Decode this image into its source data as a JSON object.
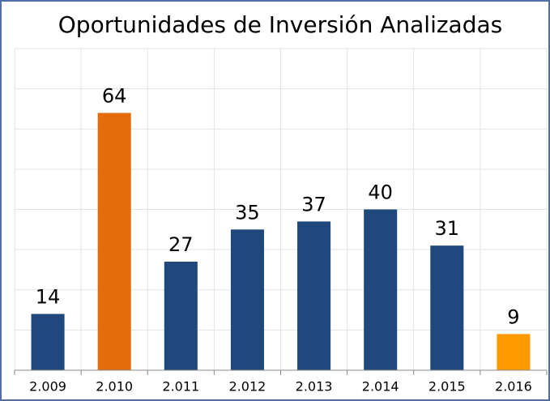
{
  "chart_data": {
    "type": "bar",
    "title": "Oportunidades de Inversión Analizadas",
    "categories": [
      "2.009",
      "2.010",
      "2.011",
      "2.012",
      "2.013",
      "2.014",
      "2.015",
      "2.016"
    ],
    "values": [
      14,
      64,
      27,
      35,
      37,
      40,
      31,
      9
    ],
    "colors": [
      "#1f497d",
      "#e46c0a",
      "#1f497d",
      "#1f497d",
      "#1f497d",
      "#1f497d",
      "#1f497d",
      "#ff9900"
    ],
    "ylim": [
      0,
      80
    ],
    "yticks": [
      0,
      10,
      20,
      30,
      40,
      50,
      60,
      70,
      80
    ],
    "grid": true
  }
}
